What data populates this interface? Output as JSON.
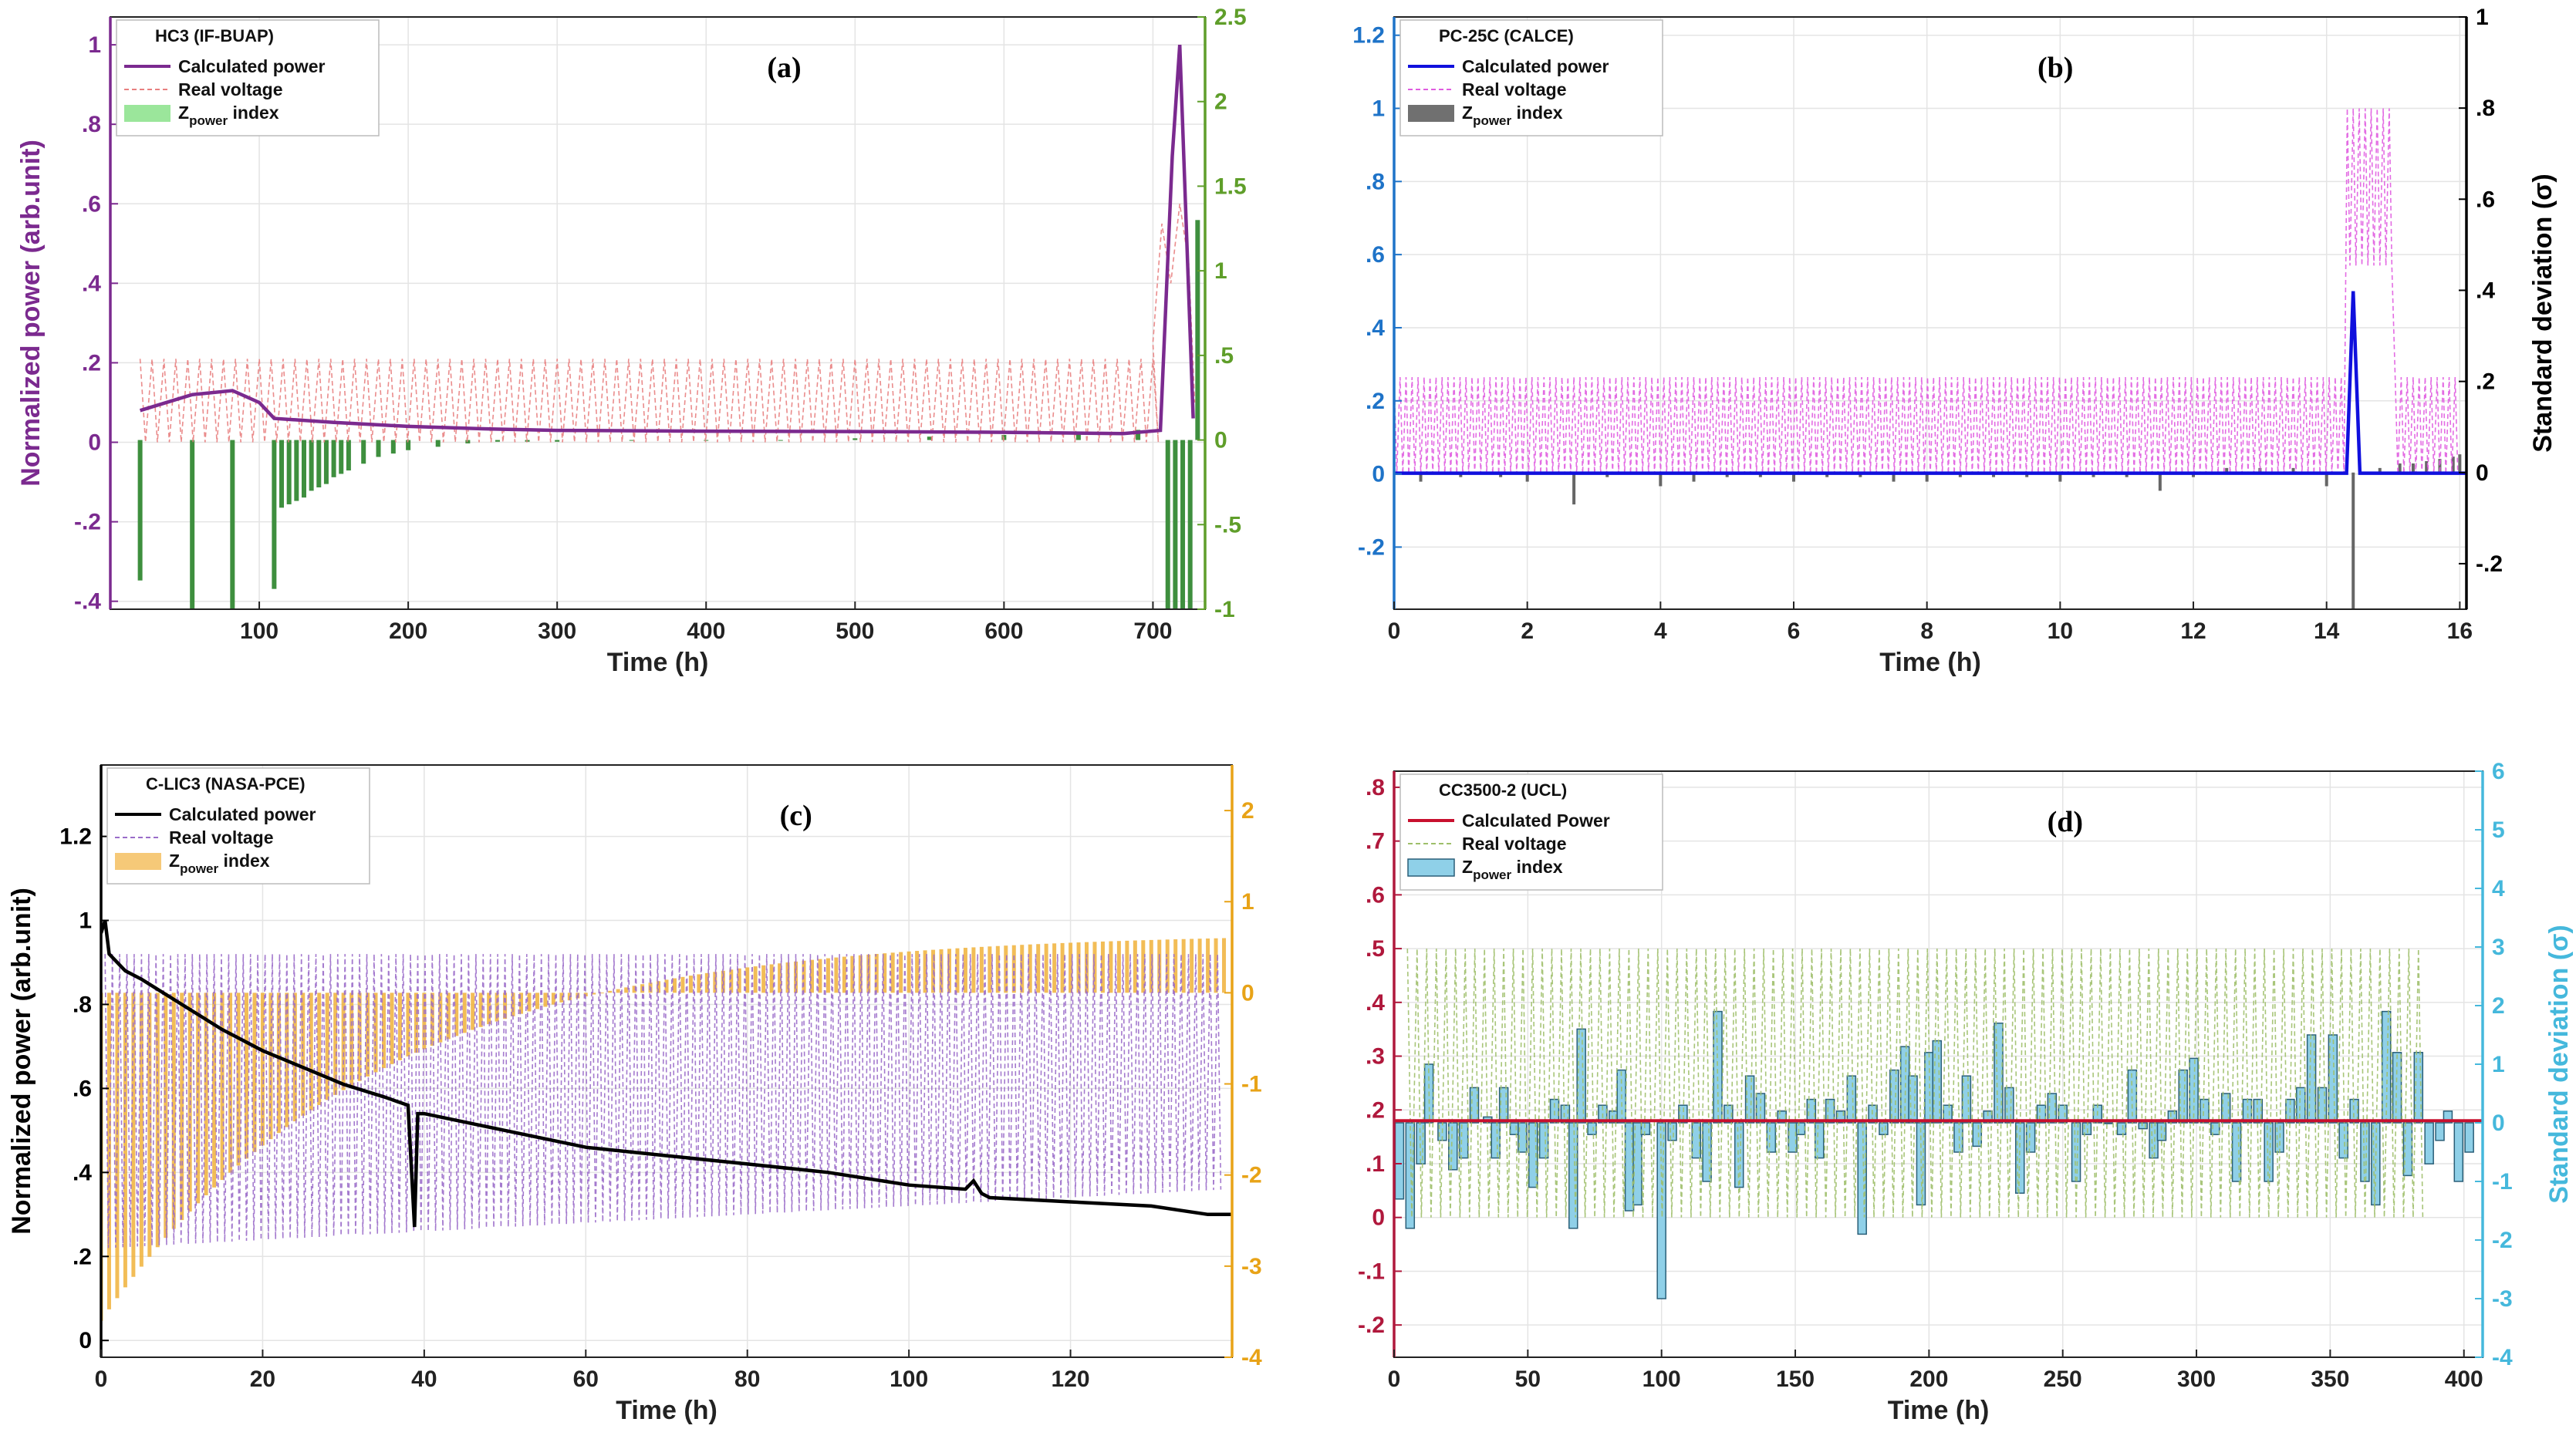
{
  "chart_data": [
    {
      "id": "a",
      "type": "line",
      "panel_label": "(a)",
      "title": "HC3 (IF-BUAP)",
      "xlabel": "Time (h)",
      "ylabel": "Normalized  power  (arb.unit)",
      "ylabel_right": "",
      "xlim": [
        0,
        735
      ],
      "ylim": [
        -0.42,
        1.07
      ],
      "ylim_right": [
        -1,
        2.5
      ],
      "xticks": [
        100,
        200,
        300,
        400,
        500,
        600,
        700
      ],
      "yticks": [
        -0.4,
        -0.2,
        0,
        0.2,
        0.4,
        0.6,
        0.8,
        1
      ],
      "yticks_right": [
        -1,
        -0.5,
        0,
        0.5,
        1,
        1.5,
        2,
        2.5
      ],
      "colors": {
        "left_axis": "#7b2a8f",
        "right_axis": "#5f9e2a",
        "calc": "#7b2a8f",
        "voltage": "#e87f7f",
        "bars": "#3e8f3e",
        "bars_legend": "#9be69b"
      },
      "legend": [
        "Calculated power",
        "Real voltage",
        "Z",
        "power",
        " index"
      ],
      "series": [
        {
          "name": "Calculated power",
          "x": [
            20,
            55,
            82,
            100,
            110,
            150,
            200,
            250,
            300,
            400,
            500,
            600,
            680,
            705,
            713,
            718,
            727
          ],
          "values": [
            0.08,
            0.12,
            0.13,
            0.1,
            0.06,
            0.05,
            0.04,
            0.034,
            0.03,
            0.028,
            0.027,
            0.025,
            0.022,
            0.03,
            0.72,
            1.0,
            0.06
          ]
        },
        {
          "name": "Real voltage",
          "x_start": 20,
          "x_end": 700,
          "period": 8,
          "low": 0.0,
          "high": 0.21,
          "spike": {
            "x": [
              700,
              706,
              712,
              718,
              724,
              728
            ],
            "values": [
              0.25,
              0.55,
              0.4,
              0.6,
              0.45,
              0.1
            ]
          }
        },
        {
          "name": "Zpower index",
          "axis": "right",
          "x": [
            20,
            55,
            82,
            110,
            115,
            120,
            125,
            130,
            135,
            140,
            145,
            150,
            155,
            160,
            170,
            180,
            190,
            200,
            220,
            240,
            260,
            280,
            300,
            350,
            400,
            450,
            500,
            550,
            600,
            650,
            690,
            710,
            715,
            720,
            725,
            730
          ],
          "values": [
            -0.83,
            -1.3,
            -1.45,
            -0.88,
            -0.4,
            -0.38,
            -0.36,
            -0.34,
            -0.3,
            -0.28,
            -0.26,
            -0.22,
            -0.2,
            -0.18,
            -0.14,
            -0.1,
            -0.08,
            -0.06,
            -0.04,
            -0.02,
            -0.01,
            -0.01,
            -0.01,
            0.0,
            0.0,
            0.0,
            0.01,
            0.02,
            0.03,
            0.04,
            0.06,
            -2.0,
            -2.0,
            -1.0,
            -2.0,
            1.3
          ]
        }
      ]
    },
    {
      "id": "b",
      "type": "line",
      "panel_label": "(b)",
      "title": "PC-25C (CALCE)",
      "xlabel": "Time (h)",
      "ylabel": "",
      "ylabel_right": "Standard deviation (σ)",
      "xlim": [
        0,
        16.1
      ],
      "ylim": [
        -0.37,
        1.25
      ],
      "ylim_right": [
        -0.3,
        1.0
      ],
      "xticks": [
        0,
        2,
        4,
        6,
        8,
        10,
        12,
        14,
        16
      ],
      "yticks": [
        -0.2,
        0,
        0.2,
        0.4,
        0.6,
        0.8,
        1,
        1.2
      ],
      "yticks_right": [
        -0.2,
        0,
        0.2,
        0.4,
        0.6,
        0.8,
        1
      ],
      "colors": {
        "left_axis": "#1e73c8",
        "right_axis": "#000000",
        "calc": "#1010dd",
        "voltage": "#e05ce0",
        "bars": "#666666",
        "bars_legend": "#707070"
      },
      "legend": [
        "Calculated power",
        "Real voltage",
        "Z",
        "power",
        " index"
      ],
      "series": [
        {
          "name": "Calculated power",
          "x": [
            0,
            14.3,
            14.4,
            14.5,
            16.1
          ],
          "values": [
            0.002,
            0.002,
            0.5,
            0.002,
            0.002
          ]
        },
        {
          "name": "Real voltage",
          "x_start": 0,
          "x_end": 16.0,
          "period": 0.09,
          "low": 0.0,
          "high": 0.265,
          "block": {
            "x0": 14.3,
            "x1": 15.0,
            "low": 0.57,
            "high": 1.0
          }
        },
        {
          "name": "Zpower index",
          "axis": "right",
          "x": [
            0.4,
            1.0,
            1.6,
            2.0,
            2.7,
            3.2,
            4.0,
            4.5,
            5.0,
            5.5,
            6.0,
            6.5,
            7.0,
            7.5,
            8.0,
            8.5,
            9.0,
            9.5,
            10.0,
            10.5,
            11.0,
            11.5,
            12.0,
            12.5,
            13.0,
            13.5,
            14.0,
            14.4,
            14.8,
            15.1,
            15.3,
            15.5,
            15.7,
            15.9,
            16.0
          ],
          "values": [
            -0.02,
            -0.01,
            -0.01,
            -0.02,
            -0.07,
            -0.01,
            -0.03,
            -0.02,
            -0.01,
            -0.01,
            -0.02,
            -0.01,
            -0.01,
            -0.02,
            -0.02,
            -0.01,
            -0.01,
            -0.01,
            -0.02,
            -0.01,
            -0.01,
            -0.04,
            -0.01,
            0.01,
            0.01,
            0.01,
            -0.03,
            -0.45,
            0.01,
            0.02,
            0.02,
            0.025,
            0.03,
            0.035,
            0.04
          ]
        }
      ]
    },
    {
      "id": "c",
      "type": "line",
      "panel_label": "(c)",
      "title": "C-LIC3 (NASA-PCE)",
      "xlabel": "Time (h)",
      "ylabel": "Normalized  power  (arb.unit)",
      "ylabel_right": "",
      "xlim": [
        0,
        140
      ],
      "ylim": [
        -0.04,
        1.37
      ],
      "ylim_right": [
        -4,
        2.5
      ],
      "xticks": [
        0,
        20,
        40,
        60,
        80,
        100,
        120
      ],
      "yticks": [
        0,
        0.2,
        0.4,
        0.6,
        0.8,
        1,
        1.2
      ],
      "yticks_right": [
        -4,
        -3,
        -2,
        -1,
        0,
        1,
        2
      ],
      "colors": {
        "left_axis": "#000000",
        "right_axis": "#e8a317",
        "calc": "#000000",
        "voltage": "#9a6cc9",
        "bars": "#f0b23a",
        "bars_legend": "#f6c978"
      },
      "legend": [
        "Calculated power",
        "Real voltage",
        "Z",
        "power",
        " index"
      ],
      "series": [
        {
          "name": "Calculated power",
          "x": [
            0,
            0.5,
            1,
            3,
            5,
            10,
            15,
            20,
            25,
            30,
            35,
            38,
            38.8,
            39.2,
            40,
            50,
            60,
            70,
            80,
            90,
            100,
            107,
            108,
            109,
            110,
            120,
            130,
            137,
            140
          ],
          "values": [
            0.97,
            1.0,
            0.92,
            0.88,
            0.86,
            0.8,
            0.74,
            0.69,
            0.65,
            0.61,
            0.58,
            0.56,
            0.27,
            0.54,
            0.54,
            0.5,
            0.46,
            0.44,
            0.42,
            0.4,
            0.37,
            0.36,
            0.38,
            0.35,
            0.34,
            0.33,
            0.32,
            0.3,
            0.3
          ]
        },
        {
          "name": "Real voltage",
          "x_start": 0.5,
          "x_end": 139,
          "period": 0.9,
          "high": 0.92,
          "low_start": 0.22,
          "low_end": 0.36
        },
        {
          "name": "Zpower index",
          "axis": "right",
          "x_start": 0,
          "x_end": 139,
          "step": 1,
          "start_value": -3.6,
          "curve_rate": 0.03,
          "end_value": 0.6
        }
      ]
    },
    {
      "id": "d",
      "type": "line",
      "panel_label": "(d)",
      "title": "CC3500-2 (UCL)",
      "xlabel": "Time (h)",
      "ylabel": "",
      "ylabel_right": "Standard deviation (σ)",
      "xlim": [
        0,
        407
      ],
      "ylim": [
        -0.26,
        0.83
      ],
      "ylim_right": [
        -4,
        6
      ],
      "xticks": [
        0,
        50,
        100,
        150,
        200,
        250,
        300,
        350,
        400
      ],
      "yticks": [
        -0.2,
        -0.1,
        0,
        0.1,
        0.2,
        0.3,
        0.4,
        0.5,
        0.6,
        0.7,
        0.8
      ],
      "yticks_right": [
        -4,
        -3,
        -2,
        -1,
        0,
        1,
        2,
        3,
        4,
        5,
        6
      ],
      "colors": {
        "left_axis": "#b0183c",
        "right_axis": "#45b8dc",
        "calc": "#c8102e",
        "voltage": "#9ebf6a",
        "bars": "#8fd0e8",
        "bars_edge": "#2a5f78",
        "bars_legend": "#8fd0e8"
      },
      "legend": [
        "Calculated Power",
        "Real voltage",
        "Z",
        "power",
        " index"
      ],
      "series": [
        {
          "name": "Calculated Power",
          "x": [
            0,
            407
          ],
          "values": [
            0.18,
            0.18
          ]
        },
        {
          "name": "Real voltage",
          "x_start": 5,
          "x_end": 385,
          "period": 3.6,
          "low": 0.0,
          "high": 0.5
        },
        {
          "name": "Zpower index",
          "axis": "right",
          "x": [
            2,
            6,
            10,
            13,
            18,
            22,
            26,
            30,
            35,
            38,
            41,
            45,
            48,
            52,
            56,
            60,
            64,
            67,
            70,
            74,
            78,
            82,
            85,
            88,
            91,
            94,
            100,
            104,
            108,
            113,
            117,
            121,
            125,
            129,
            133,
            137,
            141,
            145,
            149,
            152,
            156,
            159,
            163,
            167,
            171,
            175,
            179,
            183,
            187,
            191,
            194,
            197,
            200,
            203,
            207,
            211,
            214,
            218,
            222,
            226,
            230,
            234,
            238,
            242,
            246,
            250,
            255,
            259,
            263,
            267,
            272,
            276,
            280,
            284,
            287,
            291,
            295,
            299,
            303,
            307,
            311,
            315,
            319,
            323,
            327,
            331,
            335,
            339,
            343,
            347,
            351,
            355,
            359,
            363,
            367,
            371,
            375,
            379,
            383,
            387,
            391,
            394,
            398,
            402
          ],
          "values": [
            -1.3,
            -1.8,
            -0.7,
            1.0,
            -0.3,
            -0.8,
            -0.6,
            0.6,
            0.1,
            -0.6,
            0.6,
            -0.2,
            -0.5,
            -1.1,
            -0.6,
            0.4,
            0.3,
            -1.8,
            1.6,
            -0.2,
            0.3,
            0.2,
            0.9,
            -1.5,
            -1.4,
            -0.2,
            -3.0,
            -0.3,
            0.3,
            -0.6,
            -1.0,
            1.9,
            0.3,
            -1.1,
            0.8,
            0.5,
            -0.5,
            0.2,
            -0.5,
            -0.2,
            0.4,
            -0.6,
            0.4,
            0.2,
            0.8,
            -1.9,
            0.3,
            -0.2,
            0.9,
            1.3,
            0.8,
            -1.4,
            1.2,
            1.4,
            0.3,
            -0.5,
            0.8,
            -0.4,
            0.2,
            1.7,
            0.6,
            -1.2,
            -0.5,
            0.3,
            0.5,
            0.3,
            -1.0,
            -0.2,
            0.3,
            0.0,
            -0.2,
            0.9,
            -0.1,
            -0.6,
            -0.3,
            0.2,
            0.9,
            1.1,
            0.4,
            -0.2,
            0.5,
            -1.0,
            0.4,
            0.4,
            -1.0,
            -0.5,
            0.4,
            0.6,
            1.5,
            0.6,
            1.5,
            -0.6,
            0.4,
            -1.0,
            -1.4,
            1.9,
            1.2,
            -0.9,
            1.2,
            -0.7,
            -0.3,
            0.2,
            -1.0,
            -0.5
          ]
        }
      ]
    }
  ]
}
